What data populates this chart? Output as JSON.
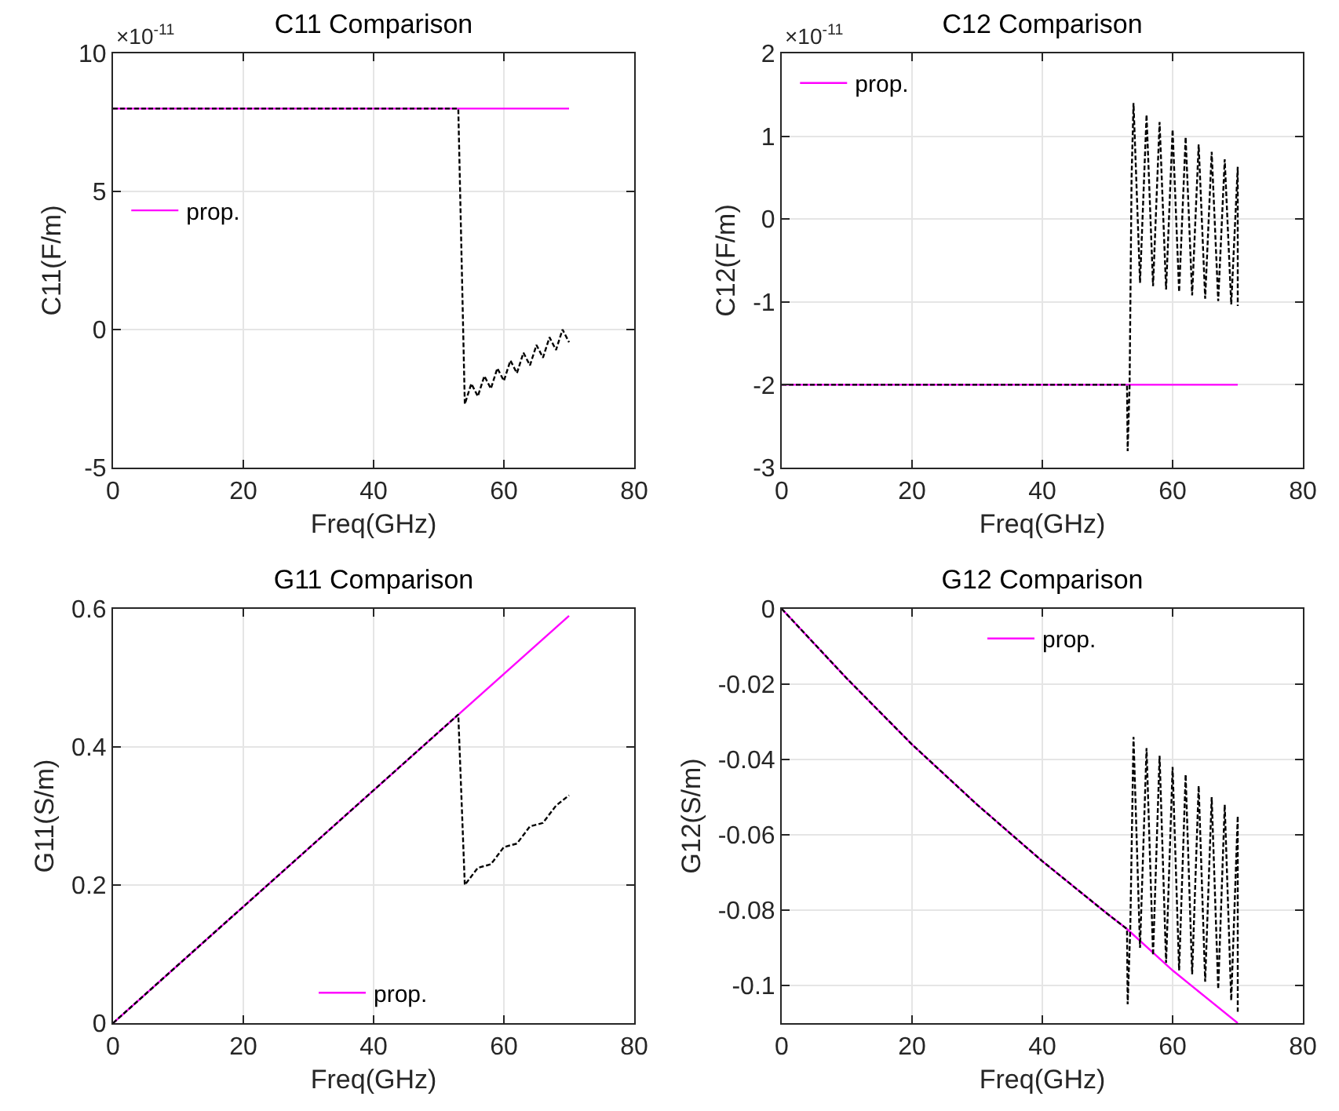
{
  "chart_data": [
    {
      "type": "line",
      "title": "C11 Comparison",
      "xlabel": "Freq(GHz)",
      "ylabel": "C11(F/m)",
      "annotations": [
        "×10$^{-11}$"
      ],
      "xlim": [
        0,
        80
      ],
      "xticks": [
        0,
        20,
        40,
        60,
        80
      ],
      "ylim": [
        -5,
        10
      ],
      "yticks": [
        -5,
        0,
        5,
        10
      ],
      "grid": true,
      "legend": "left",
      "series": [
        {
          "name": "prop.",
          "color": "#ff00ff",
          "line_style": "solid",
          "x": [
            0,
            70
          ],
          "values": [
            8,
            8
          ]
        },
        {
          "color": "#000000",
          "line_style": "dashed",
          "x": [
            0,
            53,
            54,
            55,
            56,
            57,
            58,
            59,
            60,
            61,
            62,
            63,
            64,
            65,
            66,
            67,
            68,
            69,
            70
          ],
          "values": [
            8,
            8,
            -2.7,
            -1.96,
            -2.42,
            -1.68,
            -2.14,
            -1.4,
            -1.86,
            -1.12,
            -1.58,
            -0.84,
            -1.3,
            -0.56,
            -1.02,
            -0.28,
            -0.74,
            0.0,
            -0.46
          ]
        }
      ]
    },
    {
      "type": "line",
      "title": "C12 Comparison",
      "xlabel": "Freq(GHz)",
      "ylabel": "C12(F/m)",
      "annotations": [
        "×10$^{-11}$"
      ],
      "xlim": [
        0,
        80
      ],
      "xticks": [
        0,
        20,
        40,
        60,
        80
      ],
      "ylim": [
        -3,
        2
      ],
      "yticks": [
        -3,
        -2,
        -1,
        0,
        1,
        2
      ],
      "grid": true,
      "legend": "top left",
      "series": [
        {
          "name": "prop.",
          "color": "#ff00ff",
          "line_style": "solid",
          "x": [
            0,
            70
          ],
          "values": [
            -2,
            -2
          ]
        },
        {
          "color": "#000000",
          "line_style": "dashed",
          "x": [
            0,
            53,
            53.1,
            53.4,
            53.7,
            54,
            55,
            56,
            57,
            58,
            59,
            60,
            61,
            62,
            63,
            64,
            65,
            66,
            67,
            68,
            69,
            70,
            70
          ],
          "values": [
            -2,
            -2,
            -2.8,
            -2,
            0.5,
            1.4,
            -0.77,
            1.26,
            -0.81,
            1.17,
            -0.85,
            1.08,
            -0.88,
            0.99,
            -0.92,
            0.9,
            -0.96,
            0.81,
            -0.99,
            0.72,
            -1.03,
            0.63,
            -1.05
          ]
        }
      ]
    },
    {
      "type": "line",
      "title": "G11 Comparison",
      "xlabel": "Freq(GHz)",
      "ylabel": "G11(S/m)",
      "xlim": [
        0,
        80
      ],
      "xticks": [
        0,
        20,
        40,
        60,
        80
      ],
      "ylim": [
        0,
        0.6
      ],
      "yticks": [
        0,
        0.2,
        0.4,
        0.6
      ],
      "grid": true,
      "legend": "bottom",
      "series": [
        {
          "name": "prop.",
          "color": "#ff00ff",
          "line_style": "solid",
          "x": [
            0,
            70
          ],
          "values": [
            0,
            0.59
          ]
        },
        {
          "color": "#000000",
          "line_style": "dashed",
          "x": [
            0,
            53,
            54,
            56,
            58,
            60,
            62,
            64,
            66,
            68,
            70
          ],
          "values": [
            0,
            0.447,
            0.2,
            0.225,
            0.23,
            0.255,
            0.26,
            0.285,
            0.29,
            0.315,
            0.33
          ]
        }
      ]
    },
    {
      "type": "line",
      "title": "G12 Comparison",
      "xlabel": "Freq(GHz)",
      "ylabel": "G12(S/m)",
      "xlim": [
        0,
        80
      ],
      "xticks": [
        0,
        20,
        40,
        60,
        80
      ],
      "ylim": [
        -0.11,
        0
      ],
      "yticks": [
        {
          "value": -0.1,
          "label": "-0.1"
        },
        {
          "value": -0.08,
          "label": "-0.08"
        },
        {
          "value": -0.06,
          "label": "-0.06"
        },
        {
          "value": -0.04,
          "label": "-0.04"
        },
        {
          "value": -0.02,
          "label": "-0.02"
        },
        0
      ],
      "grid": true,
      "legend": "top",
      "series": [
        {
          "name": "prop.",
          "color": "#ff00ff",
          "line_style": "solid",
          "x": [
            0,
            10,
            20,
            30,
            40,
            50,
            53,
            60,
            70
          ],
          "values": [
            0,
            -0.0185,
            -0.036,
            -0.052,
            -0.067,
            -0.081,
            -0.085,
            -0.096,
            -0.11
          ]
        },
        {
          "color": "#000000",
          "line_style": "dashed",
          "x": [
            0,
            10,
            20,
            30,
            40,
            50,
            53,
            53.1,
            53.5,
            54,
            55,
            56,
            57,
            58,
            59,
            60,
            61,
            62,
            63,
            64,
            65,
            66,
            67,
            68,
            69,
            70,
            70
          ],
          "values": [
            0,
            -0.0185,
            -0.036,
            -0.052,
            -0.067,
            -0.081,
            -0.085,
            -0.105,
            -0.085,
            -0.034,
            -0.09,
            -0.037,
            -0.092,
            -0.039,
            -0.094,
            -0.042,
            -0.096,
            -0.044,
            -0.097,
            -0.047,
            -0.099,
            -0.05,
            -0.101,
            -0.052,
            -0.104,
            -0.055,
            -0.107
          ]
        }
      ]
    }
  ]
}
